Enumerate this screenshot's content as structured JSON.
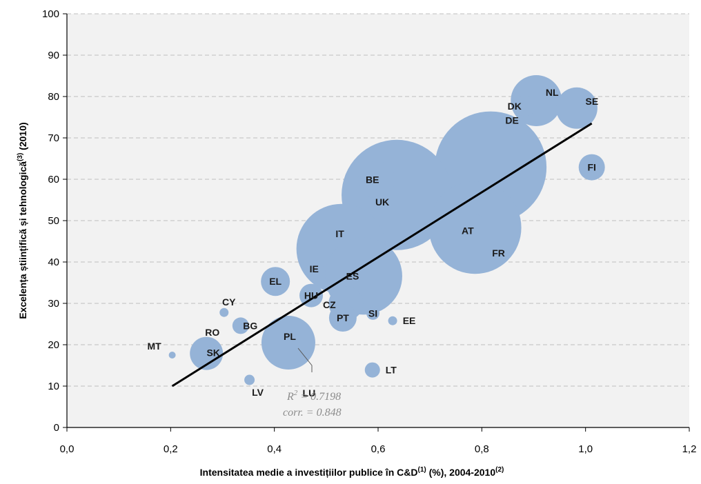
{
  "chart_data": {
    "type": "scatter",
    "subtype": "bubble",
    "xlabel": {
      "text": "Intensitatea medie a investițiilor publice în C&D",
      "sup1": "(1)",
      "mid": " (%), 2004-2010",
      "sup2": "(2)"
    },
    "ylabel": {
      "text": "Excelența științifică și tehnologică",
      "sup1": "(3)",
      "tail": " (2010)"
    },
    "xlim": [
      0,
      1.2
    ],
    "ylim": [
      0,
      100
    ],
    "x_ticks": [
      "0,0",
      "0,2",
      "0,4",
      "0,6",
      "0,8",
      "1,0",
      "1,2"
    ],
    "y_ticks": [
      "0",
      "10",
      "20",
      "30",
      "40",
      "50",
      "60",
      "70",
      "80",
      "90",
      "100"
    ],
    "grid": "horizontal dashed",
    "bubble_color": "#95b3d7",
    "background_color": "#f2f2f2",
    "points": [
      {
        "label": "MT",
        "x": 0.203,
        "y": 17.5,
        "r": 5,
        "lx": -26,
        "ly": -13
      },
      {
        "label": "SK",
        "x": 0.269,
        "y": 17.9,
        "r": 24,
        "lx": 10,
        "ly": -1
      },
      {
        "label": "RO",
        "x": 0.275,
        "y": 20.0,
        "r": 0,
        "lx": 4,
        "ly": -18
      },
      {
        "label": "BG",
        "x": 0.335,
        "y": 24.6,
        "r": 12,
        "lx": 14,
        "ly": 0
      },
      {
        "label": "CY",
        "x": 0.303,
        "y": 27.8,
        "r": 6.5,
        "lx": 7,
        "ly": -15
      },
      {
        "label": "LV",
        "x": 0.352,
        "y": 11.5,
        "r": 7.5,
        "lx": 12,
        "ly": 18
      },
      {
        "label": "EL",
        "x": 0.402,
        "y": 35.3,
        "r": 21,
        "lx": 0,
        "ly": 0
      },
      {
        "label": "PL",
        "x": 0.427,
        "y": 20.5,
        "r": 39,
        "lx": 2,
        "ly": -9
      },
      {
        "label": "LU",
        "x": 0.52,
        "y": 9.5,
        "r": 0,
        "lx": -40,
        "ly": 7
      },
      {
        "label": "HU",
        "x": 0.471,
        "y": 31.9,
        "r": 17,
        "lx": 0,
        "ly": 0
      },
      {
        "label": "IE",
        "x": 0.478,
        "y": 38.3,
        "r": 13,
        "lx": -1,
        "ly": 0
      },
      {
        "label": "IT",
        "x": 0.529,
        "y": 43.2,
        "r": 65,
        "lx": -2,
        "ly": -22
      },
      {
        "label": "ES",
        "x": 0.572,
        "y": 36.6,
        "r": 56,
        "lx": -16,
        "ly": 0
      },
      {
        "label": "CZ",
        "x": 0.538,
        "y": 30.0,
        "r": 25,
        "lx": -24,
        "ly": 2
      },
      {
        "label": "PT",
        "x": 0.532,
        "y": 26.5,
        "r": 20,
        "lx": 0,
        "ly": 0
      },
      {
        "label": "SI",
        "x": 0.59,
        "y": 27.6,
        "r": 9.5,
        "lx": 0,
        "ly": 0
      },
      {
        "label": "EE",
        "x": 0.628,
        "y": 25.8,
        "r": 6.5,
        "lx": 24,
        "ly": 0
      },
      {
        "label": "LT",
        "x": 0.589,
        "y": 13.9,
        "r": 11,
        "lx": 27,
        "ly": 0
      },
      {
        "label": "BE",
        "x": 0.597,
        "y": 59.9,
        "r": 27,
        "lx": -6,
        "ly": 0
      },
      {
        "label": "UK",
        "x": 0.636,
        "y": 56.2,
        "r": 80,
        "lx": -21,
        "ly": 10
      },
      {
        "label": "AT",
        "x": 0.79,
        "y": 49.1,
        "r": 14,
        "lx": -13,
        "ly": 9
      },
      {
        "label": "FR",
        "x": 0.787,
        "y": 48.3,
        "r": 67,
        "lx": 34,
        "ly": 37
      },
      {
        "label": "DE",
        "x": 0.817,
        "y": 62.9,
        "r": 81,
        "lx": 31,
        "ly": -68
      },
      {
        "label": "DK",
        "x": 0.883,
        "y": 77.7,
        "r": 15,
        "lx": -15,
        "ly": 0
      },
      {
        "label": "NL",
        "x": 0.905,
        "y": 79.0,
        "r": 37,
        "lx": 23,
        "ly": -12
      },
      {
        "label": "SE",
        "x": 0.983,
        "y": 77.2,
        "r": 30,
        "lx": 22,
        "ly": -10
      },
      {
        "label": "FI",
        "x": 1.012,
        "y": 62.9,
        "r": 19,
        "lx": 0,
        "ly": 0
      }
    ],
    "trendline": {
      "x": [
        0.203,
        1.012
      ],
      "y": [
        10.0,
        73.5
      ],
      "color": "#000000"
    },
    "r_squared": {
      "prefix": "R",
      "sup": "2",
      "value": " = 0.7198"
    },
    "correlation": "corr. = 0.848"
  }
}
